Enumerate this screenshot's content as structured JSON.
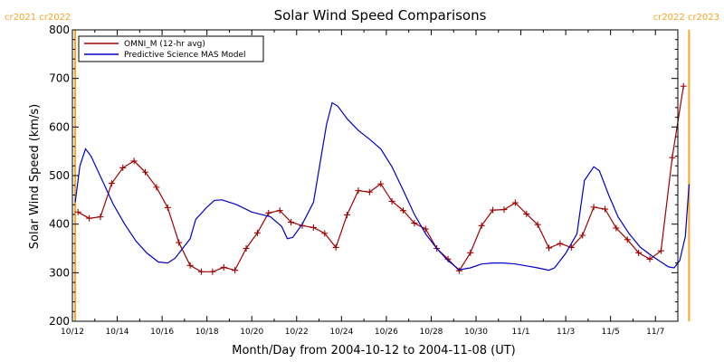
{
  "chart_data": {
    "type": "line",
    "title": "Solar Wind Speed Comparisons",
    "xlabel": "Month/Day from 2004-10-12 to 2004-11-08 (UT)",
    "ylabel": "Solar Wind Speed (km/s)",
    "ylim": [
      200,
      800
    ],
    "yticks": [
      200,
      300,
      400,
      500,
      600,
      700,
      800
    ],
    "xlim": [
      "2004-10-12",
      "2004-11-08"
    ],
    "xticks": [
      {
        "date": "2004-10-12",
        "label": "10/12"
      },
      {
        "date": "2004-10-14",
        "label": "10/14"
      },
      {
        "date": "2004-10-16",
        "label": "10/16"
      },
      {
        "date": "2004-10-18",
        "label": "10/18"
      },
      {
        "date": "2004-10-20",
        "label": "10/20"
      },
      {
        "date": "2004-10-22",
        "label": "10/22"
      },
      {
        "date": "2004-10-24",
        "label": "10/24"
      },
      {
        "date": "2004-10-26",
        "label": "10/26"
      },
      {
        "date": "2004-10-28",
        "label": "10/28"
      },
      {
        "date": "2004-10-30",
        "label": "10/30"
      },
      {
        "date": "2004-11-01",
        "label": "11/1"
      },
      {
        "date": "2004-11-03",
        "label": "11/3"
      },
      {
        "date": "2004-11-05",
        "label": "11/5"
      },
      {
        "date": "2004-11-07",
        "label": "11/7"
      }
    ],
    "legend_position": "top-left",
    "grid": false,
    "rotation_markers": [
      {
        "date": "2004-10-12 03:00",
        "label": "cr2021 cr2022",
        "color": "#f5a623",
        "label_side": "left"
      },
      {
        "date": "2004-11-08 12:00",
        "label": "cr2022 cr2023",
        "color": "#f5a623",
        "label_side": "right"
      }
    ],
    "series": [
      {
        "name": "OMNI_M (12-hr avg)",
        "color": "#a00000",
        "markers": "plus",
        "points": [
          [
            "2004-10-12 06:00",
            425
          ],
          [
            "2004-10-12 18:00",
            412
          ],
          [
            "2004-10-13 06:00",
            415
          ],
          [
            "2004-10-13 18:00",
            484
          ],
          [
            "2004-10-14 06:00",
            516
          ],
          [
            "2004-10-14 18:00",
            530
          ],
          [
            "2004-10-15 06:00",
            507
          ],
          [
            "2004-10-15 18:00",
            476
          ],
          [
            "2004-10-16 06:00",
            434
          ],
          [
            "2004-10-16 18:00",
            362
          ],
          [
            "2004-10-17 06:00",
            315
          ],
          [
            "2004-10-17 18:00",
            302
          ],
          [
            "2004-10-18 06:00",
            302
          ],
          [
            "2004-10-18 18:00",
            311
          ],
          [
            "2004-10-19 06:00",
            305
          ],
          [
            "2004-10-19 18:00",
            350
          ],
          [
            "2004-10-20 06:00",
            382
          ],
          [
            "2004-10-20 18:00",
            423
          ],
          [
            "2004-10-21 06:00",
            428
          ],
          [
            "2004-10-21 18:00",
            404
          ],
          [
            "2004-10-22 06:00",
            397
          ],
          [
            "2004-10-22 18:00",
            393
          ],
          [
            "2004-10-23 06:00",
            381
          ],
          [
            "2004-10-23 18:00",
            352
          ],
          [
            "2004-10-24 06:00",
            419
          ],
          [
            "2004-10-24 18:00",
            469
          ],
          [
            "2004-10-25 06:00",
            466
          ],
          [
            "2004-10-25 18:00",
            483
          ],
          [
            "2004-10-26 06:00",
            447
          ],
          [
            "2004-10-26 18:00",
            428
          ],
          [
            "2004-10-27 06:00",
            402
          ],
          [
            "2004-10-27 18:00",
            390
          ],
          [
            "2004-10-28 06:00",
            350
          ],
          [
            "2004-10-28 18:00",
            328
          ],
          [
            "2004-10-29 06:00",
            304
          ],
          [
            "2004-10-29 18:00",
            341
          ],
          [
            "2004-10-30 06:00",
            397
          ],
          [
            "2004-10-30 18:00",
            429
          ],
          [
            "2004-10-31 06:00",
            430
          ],
          [
            "2004-10-31 18:00",
            444
          ],
          [
            "2004-11-01 06:00",
            421
          ],
          [
            "2004-11-01 18:00",
            399
          ],
          [
            "2004-11-02 06:00",
            351
          ],
          [
            "2004-11-02 18:00",
            360
          ],
          [
            "2004-11-03 06:00",
            352
          ],
          [
            "2004-11-03 18:00",
            377
          ],
          [
            "2004-11-04 06:00",
            435
          ],
          [
            "2004-11-04 18:00",
            431
          ],
          [
            "2004-11-05 06:00",
            392
          ],
          [
            "2004-11-05 18:00",
            368
          ],
          [
            "2004-11-06 06:00",
            341
          ],
          [
            "2004-11-06 18:00",
            328
          ],
          [
            "2004-11-07 06:00",
            345
          ],
          [
            "2004-11-07 18:00",
            537
          ],
          [
            "2004-11-08 06:00",
            684
          ]
        ]
      },
      {
        "name": "Predictive Science MAS Model",
        "color": "#0000c8",
        "markers": "none",
        "points": [
          [
            "2004-10-12 03:00",
            445
          ],
          [
            "2004-10-12 08:00",
            520
          ],
          [
            "2004-10-12 14:00",
            555
          ],
          [
            "2004-10-12 20:00",
            540
          ],
          [
            "2004-10-13 08:00",
            490
          ],
          [
            "2004-10-13 20:00",
            440
          ],
          [
            "2004-10-14 08:00",
            400
          ],
          [
            "2004-10-14 20:00",
            365
          ],
          [
            "2004-10-15 08:00",
            340
          ],
          [
            "2004-10-15 20:00",
            322
          ],
          [
            "2004-10-16 06:00",
            320
          ],
          [
            "2004-10-16 14:00",
            330
          ],
          [
            "2004-10-17 06:00",
            370
          ],
          [
            "2004-10-17 12:00",
            410
          ],
          [
            "2004-10-18 00:00",
            435
          ],
          [
            "2004-10-18 08:00",
            449
          ],
          [
            "2004-10-18 16:00",
            450
          ],
          [
            "2004-10-19 08:00",
            440
          ],
          [
            "2004-10-20 00:00",
            425
          ],
          [
            "2004-10-20 20:00",
            415
          ],
          [
            "2004-10-21 08:00",
            395
          ],
          [
            "2004-10-21 14:00",
            370
          ],
          [
            "2004-10-21 20:00",
            373
          ],
          [
            "2004-10-22 06:00",
            400
          ],
          [
            "2004-10-22 18:00",
            445
          ],
          [
            "2004-10-23 08:00",
            605
          ],
          [
            "2004-10-23 14:00",
            650
          ],
          [
            "2004-10-23 20:00",
            643
          ],
          [
            "2004-10-24 06:00",
            617
          ],
          [
            "2004-10-24 18:00",
            593
          ],
          [
            "2004-10-25 06:00",
            575
          ],
          [
            "2004-10-25 18:00",
            555
          ],
          [
            "2004-10-26 06:00",
            518
          ],
          [
            "2004-10-26 18:00",
            470
          ],
          [
            "2004-10-27 06:00",
            420
          ],
          [
            "2004-10-27 18:00",
            380
          ],
          [
            "2004-10-28 06:00",
            350
          ],
          [
            "2004-10-28 18:00",
            325
          ],
          [
            "2004-10-29 06:00",
            306
          ],
          [
            "2004-10-29 18:00",
            310
          ],
          [
            "2004-10-30 06:00",
            318
          ],
          [
            "2004-10-30 18:00",
            320
          ],
          [
            "2004-10-31 06:00",
            320
          ],
          [
            "2004-10-31 18:00",
            318
          ],
          [
            "2004-11-01 06:00",
            314
          ],
          [
            "2004-11-01 18:00",
            310
          ],
          [
            "2004-11-02 06:00",
            305
          ],
          [
            "2004-11-02 12:00",
            310
          ],
          [
            "2004-11-03 00:00",
            340
          ],
          [
            "2004-11-03 12:00",
            380
          ],
          [
            "2004-11-03 20:00",
            490
          ],
          [
            "2004-11-04 06:00",
            518
          ],
          [
            "2004-11-04 12:00",
            510
          ],
          [
            "2004-11-04 22:00",
            460
          ],
          [
            "2004-11-05 08:00",
            415
          ],
          [
            "2004-11-05 20:00",
            380
          ],
          [
            "2004-11-06 08:00",
            352
          ],
          [
            "2004-11-06 20:00",
            335
          ],
          [
            "2004-11-07 06:00",
            322
          ],
          [
            "2004-11-07 14:00",
            312
          ],
          [
            "2004-11-07 20:00",
            310
          ],
          [
            "2004-11-08 02:00",
            325
          ],
          [
            "2004-11-08 08:00",
            375
          ],
          [
            "2004-11-08 12:00",
            482
          ]
        ]
      }
    ]
  }
}
